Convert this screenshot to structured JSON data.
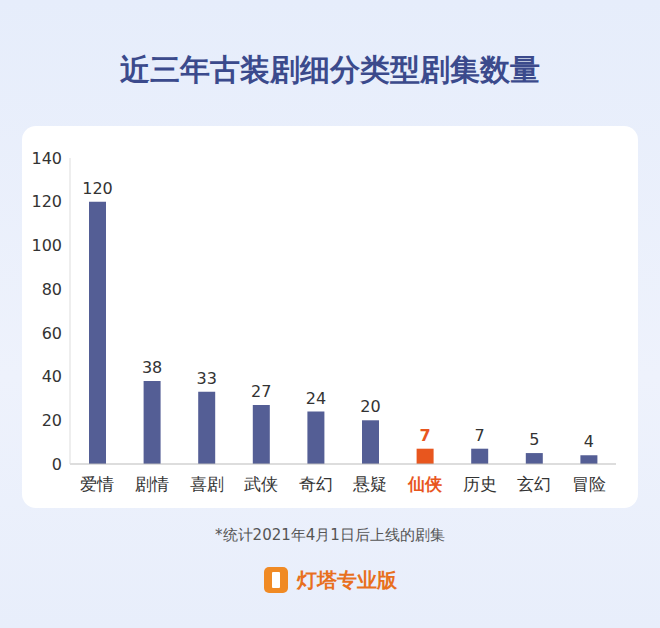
{
  "chart_data": {
    "type": "bar",
    "title": "近三年古装剧细分类型剧集数量",
    "categories": [
      "爱情",
      "剧情",
      "喜剧",
      "武侠",
      "奇幻",
      "悬疑",
      "仙侠",
      "历史",
      "玄幻",
      "冒险"
    ],
    "values": [
      120,
      38,
      33,
      27,
      24,
      20,
      7,
      7,
      5,
      4
    ],
    "colors": [
      "#545e95",
      "#545e95",
      "#545e95",
      "#545e95",
      "#545e95",
      "#545e95",
      "#e8561e",
      "#545e95",
      "#545e95",
      "#545e95"
    ],
    "ylim": [
      0,
      140
    ],
    "yticks": [
      0,
      20,
      40,
      60,
      80,
      100,
      120,
      140
    ],
    "grid": false,
    "data_labels": true,
    "annotations": [
      "*统计2021年4月1日后上线的剧集",
      "灯塔专业版"
    ]
  }
}
